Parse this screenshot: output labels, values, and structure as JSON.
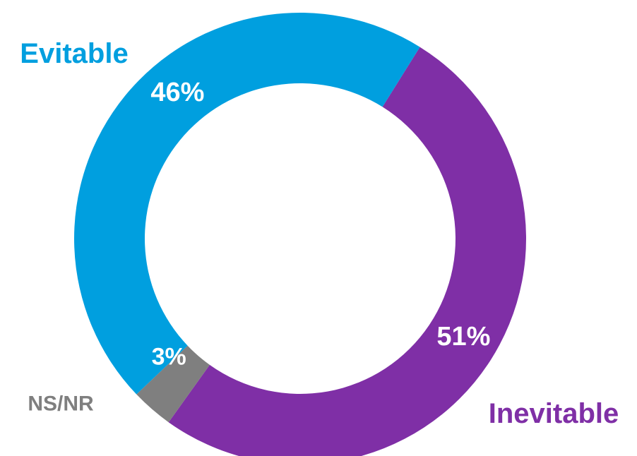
{
  "chart_data": {
    "type": "pie",
    "subtype": "donut",
    "categories": [
      "Evitable",
      "Inevitable",
      "NS/NR"
    ],
    "values": [
      46,
      51,
      3
    ],
    "value_labels": [
      "46%",
      "51%",
      "3%"
    ],
    "colors": [
      "#009FDF",
      "#7F2FA6",
      "#7F7F7F"
    ],
    "category_label_colors": [
      "#009FDF",
      "#7F2FA6",
      "#7F7F7F"
    ],
    "legend": "none"
  }
}
